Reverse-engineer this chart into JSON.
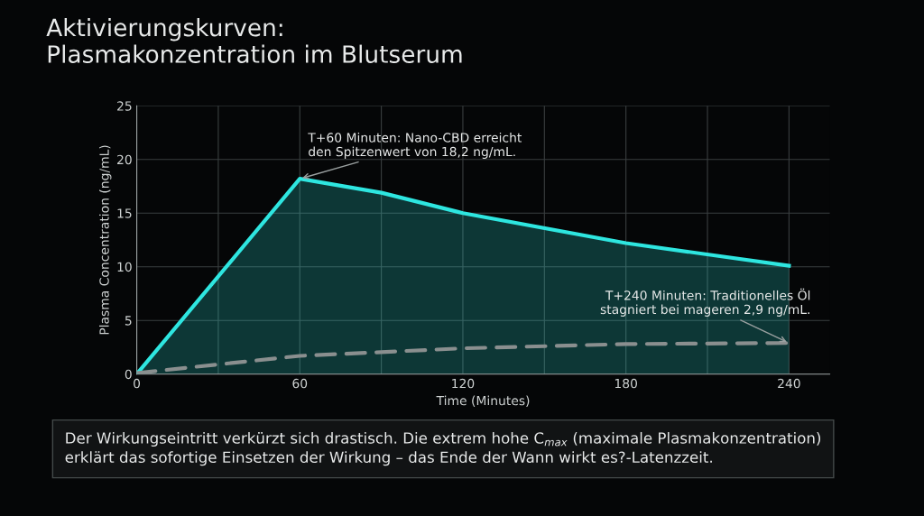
{
  "chart_data": {
    "type": "line",
    "title": "Aktivierungskurven:\nPlasmakonzentration im Blutserum",
    "xlabel": "Time (Minutes)",
    "ylabel": "Plasma Concentration (ng/mL)",
    "series": [
      {
        "type": "area",
        "color": "#2ee6e0",
        "x": [
          0,
          60,
          90,
          120,
          180,
          240
        ],
        "values": [
          0,
          18.2,
          16.9,
          15.0,
          12.2,
          10.1
        ],
        "line_style": "solid"
      },
      {
        "color": "#8a8f8f",
        "x": [
          0,
          60,
          120,
          180,
          240
        ],
        "values": [
          0.1,
          1.7,
          2.4,
          2.8,
          2.9
        ],
        "line_style": "dashed"
      }
    ],
    "xlim": [
      0,
      255
    ],
    "ylim": [
      0,
      25
    ],
    "xticks": [
      0,
      {
        "value": 30,
        "label": null
      },
      60,
      {
        "value": 90,
        "label": null
      },
      120,
      {
        "value": 150,
        "label": null
      },
      180,
      {
        "value": 210,
        "label": null
      },
      240
    ],
    "yticks": [
      0,
      5,
      10,
      15,
      20,
      25
    ],
    "grid": true,
    "legend": false,
    "annotations": [
      {
        "text": "T+60 Minuten: Nano-CBD erreicht\nden Spitzenwert von 18,2 ng/mL.",
        "x": 60,
        "y": 18.2
      },
      {
        "text": "T+240 Minuten: Traditionelles Öl\nstagniert bei mageren 2,9 ng/mL.",
        "x": 240,
        "y": 2.9
      },
      "Der Wirkungseintritt verkürzt sich drastisch. Die extrem hohe C$_{max}$ (maximale Plasmakonzentration)\nerklärt das sofortige Einsetzen der Wirkung – das Ende der Wann wirkt es?-Latenzzeit."
    ]
  }
}
